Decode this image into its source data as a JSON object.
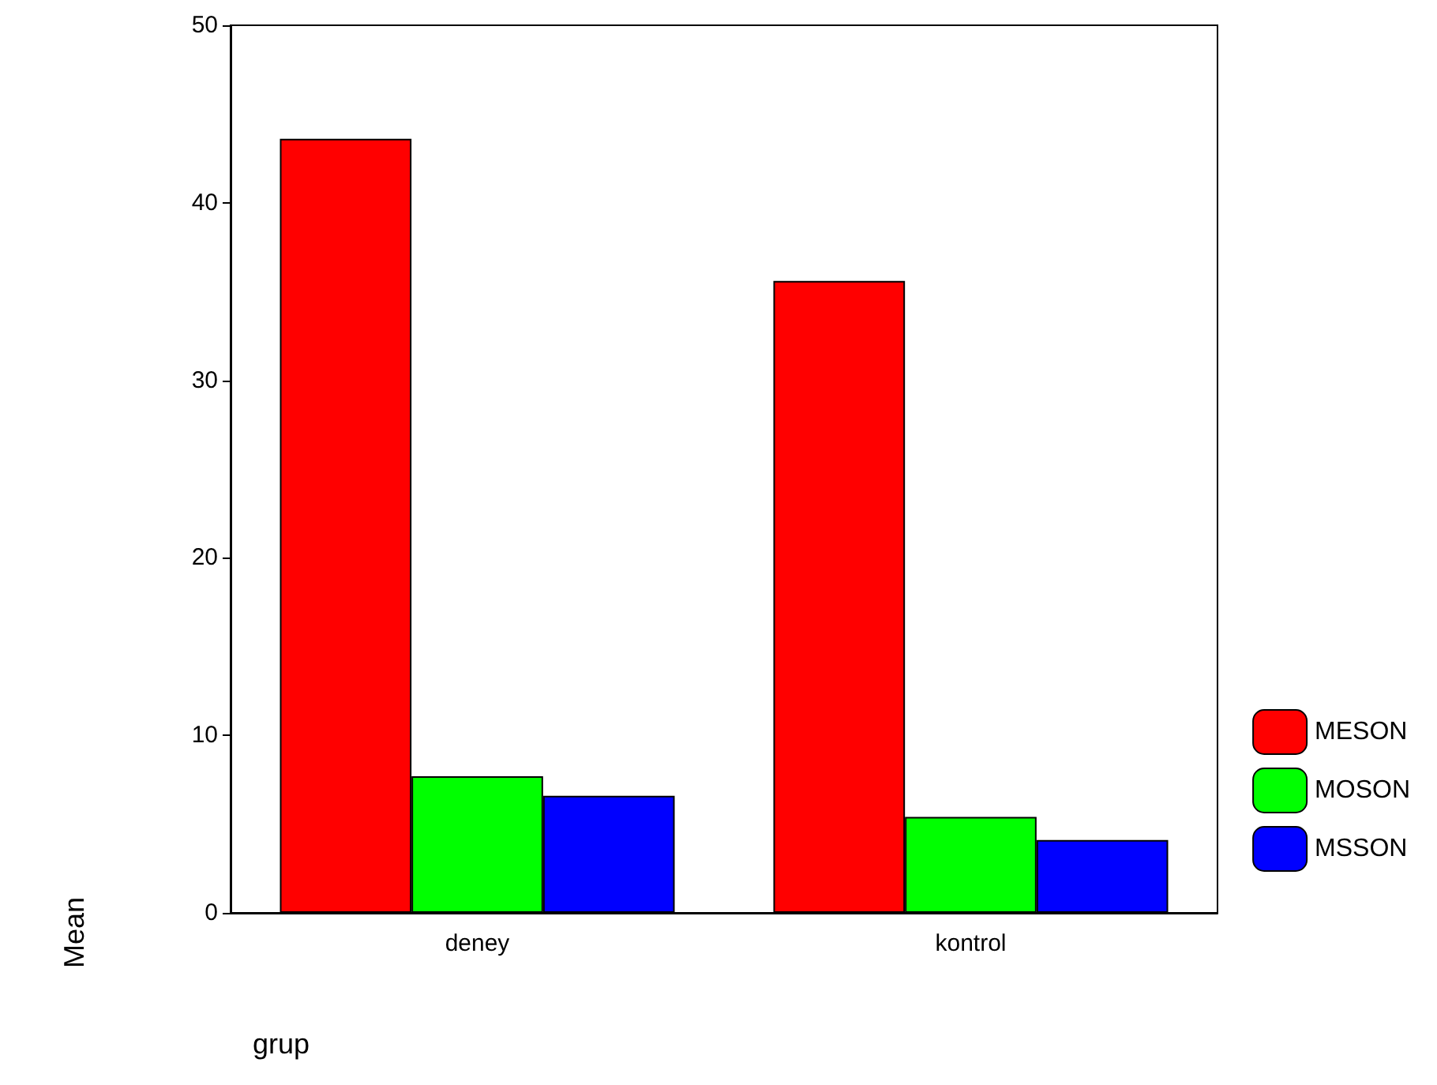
{
  "chart_data": {
    "type": "bar",
    "xlabel": "grup",
    "ylabel": "Mean",
    "categories": [
      "deney",
      "kontrol"
    ],
    "series": [
      {
        "name": "MESON",
        "color": "#ff0000",
        "values": [
          43.6,
          35.6
        ]
      },
      {
        "name": "MOSON",
        "color": "#00ff00",
        "values": [
          7.7,
          5.4
        ]
      },
      {
        "name": "MSSON",
        "color": "#0000ff",
        "values": [
          6.6,
          4.1
        ]
      }
    ],
    "ylim": [
      0,
      50
    ],
    "yticks": [
      0,
      10,
      20,
      30,
      40,
      50
    ],
    "grid": false,
    "legend": "right"
  }
}
